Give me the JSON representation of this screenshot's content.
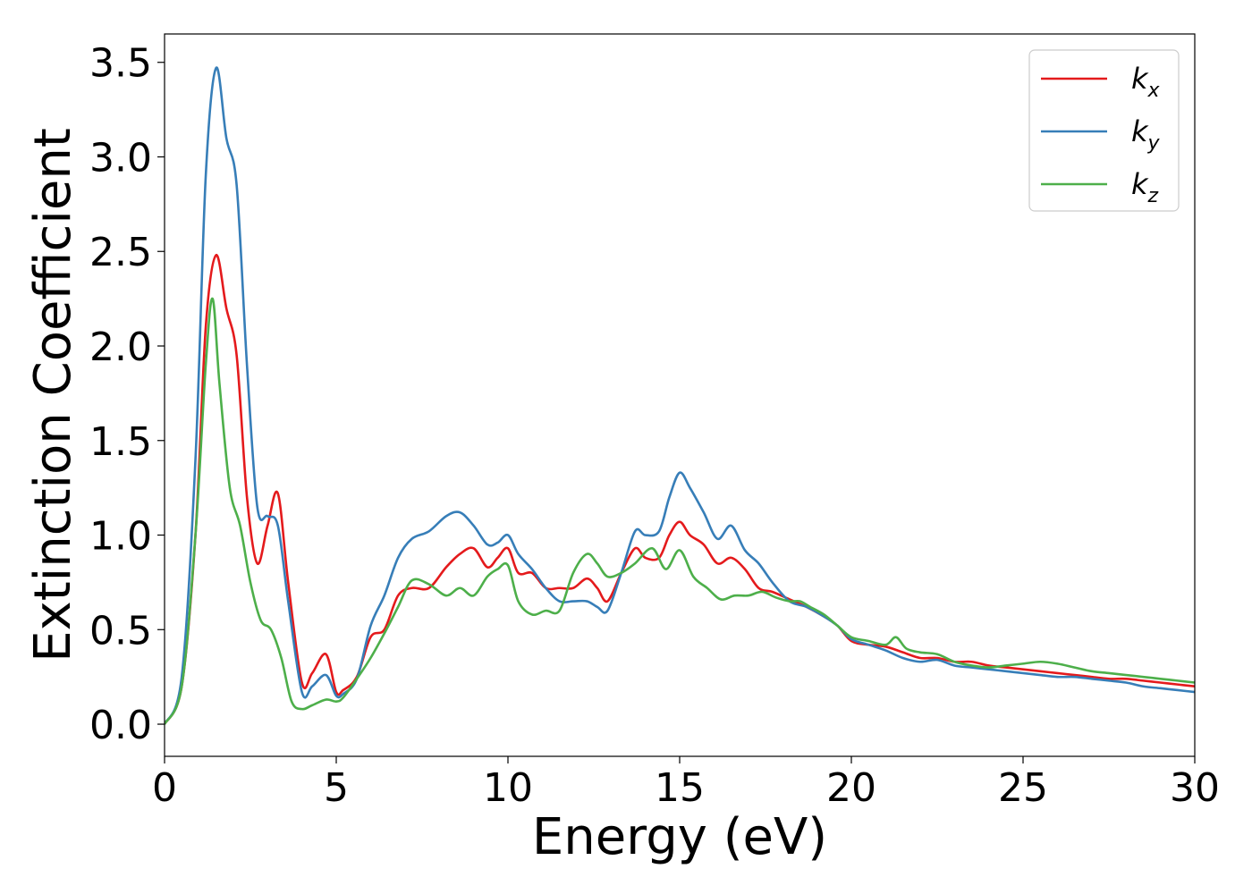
{
  "chart_data": {
    "type": "line",
    "xlabel": "Energy (eV)",
    "ylabel": "Extinction Coefficient",
    "xlim": [
      0,
      30
    ],
    "ylim": [
      -0.17,
      3.65
    ],
    "xticks": [
      "0",
      "5",
      "10",
      "15",
      "20",
      "25",
      "30"
    ],
    "yticks": [
      "0.0",
      "0.5",
      "1.0",
      "1.5",
      "2.0",
      "2.5",
      "3.0",
      "3.5"
    ],
    "grid": false,
    "legend_position": "top-right",
    "series": [
      {
        "name": "x",
        "color": "#e41a1c",
        "x": [
          0,
          0.5,
          0.9,
          1.2,
          1.5,
          1.8,
          2.1,
          2.4,
          2.7,
          3.0,
          3.3,
          3.6,
          4.0,
          4.3,
          4.7,
          5.0,
          5.2,
          5.6,
          6.0,
          6.4,
          6.8,
          7.2,
          7.7,
          8.2,
          8.6,
          9.0,
          9.4,
          9.7,
          10.0,
          10.3,
          10.7,
          11.1,
          11.5,
          11.9,
          12.3,
          12.6,
          12.9,
          13.3,
          13.7,
          14.0,
          14.4,
          14.7,
          15.0,
          15.3,
          15.7,
          16.1,
          16.5,
          16.9,
          17.3,
          17.7,
          18.2,
          18.7,
          19.2,
          19.6,
          20.0,
          20.5,
          21.0,
          21.5,
          22.0,
          22.5,
          23.0,
          23.5,
          24.0,
          24.5,
          25.0,
          25.5,
          26.0,
          26.5,
          27.0,
          27.5,
          28.0,
          28.5,
          29.0,
          29.5,
          30.0
        ],
        "y": [
          0.0,
          0.2,
          1.0,
          2.1,
          2.48,
          2.2,
          1.95,
          1.2,
          0.85,
          1.05,
          1.22,
          0.75,
          0.22,
          0.27,
          0.37,
          0.17,
          0.18,
          0.25,
          0.46,
          0.5,
          0.68,
          0.72,
          0.72,
          0.83,
          0.9,
          0.93,
          0.83,
          0.88,
          0.93,
          0.8,
          0.8,
          0.72,
          0.72,
          0.72,
          0.77,
          0.72,
          0.65,
          0.8,
          0.93,
          0.88,
          0.88,
          1.0,
          1.07,
          1.0,
          0.95,
          0.85,
          0.88,
          0.82,
          0.72,
          0.7,
          0.66,
          0.62,
          0.57,
          0.52,
          0.44,
          0.42,
          0.41,
          0.38,
          0.35,
          0.35,
          0.33,
          0.33,
          0.31,
          0.3,
          0.29,
          0.28,
          0.27,
          0.26,
          0.25,
          0.24,
          0.24,
          0.23,
          0.22,
          0.21,
          0.2
        ]
      },
      {
        "name": "y",
        "color": "#377eb8",
        "x": [
          0,
          0.5,
          0.9,
          1.2,
          1.5,
          1.8,
          2.1,
          2.4,
          2.7,
          3.0,
          3.3,
          3.6,
          4.0,
          4.3,
          4.7,
          5.0,
          5.2,
          5.6,
          6.0,
          6.4,
          6.8,
          7.2,
          7.7,
          8.2,
          8.6,
          9.0,
          9.4,
          9.7,
          10.0,
          10.3,
          10.7,
          11.1,
          11.5,
          11.9,
          12.3,
          12.6,
          12.9,
          13.3,
          13.7,
          14.0,
          14.4,
          14.7,
          15.0,
          15.3,
          15.7,
          16.1,
          16.5,
          16.9,
          17.3,
          17.7,
          18.2,
          18.7,
          19.2,
          19.6,
          20.0,
          20.5,
          21.0,
          21.5,
          22.0,
          22.5,
          23.0,
          23.5,
          24.0,
          24.5,
          25.0,
          25.5,
          26.0,
          26.5,
          27.0,
          27.5,
          28.0,
          28.5,
          29.0,
          29.5,
          30.0
        ],
        "y": [
          0.0,
          0.25,
          1.4,
          2.9,
          3.47,
          3.1,
          2.85,
          1.9,
          1.15,
          1.1,
          1.05,
          0.65,
          0.17,
          0.2,
          0.26,
          0.15,
          0.16,
          0.24,
          0.52,
          0.68,
          0.88,
          0.98,
          1.02,
          1.1,
          1.12,
          1.05,
          0.95,
          0.96,
          1.0,
          0.9,
          0.82,
          0.72,
          0.65,
          0.65,
          0.65,
          0.62,
          0.6,
          0.8,
          1.02,
          1.0,
          1.02,
          1.2,
          1.33,
          1.25,
          1.12,
          0.98,
          1.05,
          0.92,
          0.85,
          0.75,
          0.65,
          0.62,
          0.57,
          0.52,
          0.45,
          0.42,
          0.39,
          0.35,
          0.33,
          0.34,
          0.31,
          0.3,
          0.29,
          0.28,
          0.27,
          0.26,
          0.25,
          0.25,
          0.24,
          0.23,
          0.22,
          0.2,
          0.19,
          0.18,
          0.17
        ]
      },
      {
        "name": "z",
        "color": "#4daf4a",
        "x": [
          0,
          0.5,
          0.9,
          1.2,
          1.4,
          1.6,
          1.9,
          2.2,
          2.5,
          2.8,
          3.1,
          3.4,
          3.7,
          4.0,
          4.3,
          4.7,
          5.0,
          5.2,
          5.6,
          6.0,
          6.4,
          6.8,
          7.2,
          7.7,
          8.2,
          8.6,
          9.0,
          9.4,
          9.7,
          10.0,
          10.3,
          10.7,
          11.1,
          11.5,
          11.9,
          12.3,
          12.6,
          12.9,
          13.3,
          13.7,
          14.2,
          14.6,
          15.0,
          15.4,
          15.8,
          16.2,
          16.6,
          17.0,
          17.4,
          17.8,
          18.2,
          18.5,
          18.8,
          19.2,
          19.6,
          20.0,
          20.5,
          21.0,
          21.3,
          21.6,
          22.0,
          22.5,
          23.0,
          23.5,
          24.0,
          24.5,
          25.0,
          25.5,
          26.0,
          26.5,
          27.0,
          27.5,
          28.0,
          28.5,
          29.0,
          29.5,
          30.0
        ],
        "y": [
          0.0,
          0.2,
          1.0,
          1.9,
          2.25,
          1.8,
          1.25,
          1.05,
          0.75,
          0.55,
          0.5,
          0.35,
          0.12,
          0.08,
          0.1,
          0.13,
          0.12,
          0.14,
          0.24,
          0.35,
          0.48,
          0.62,
          0.76,
          0.74,
          0.68,
          0.72,
          0.68,
          0.78,
          0.82,
          0.84,
          0.65,
          0.58,
          0.6,
          0.6,
          0.8,
          0.9,
          0.85,
          0.78,
          0.8,
          0.85,
          0.93,
          0.82,
          0.92,
          0.78,
          0.72,
          0.66,
          0.68,
          0.68,
          0.7,
          0.67,
          0.65,
          0.65,
          0.62,
          0.58,
          0.52,
          0.46,
          0.44,
          0.42,
          0.46,
          0.4,
          0.38,
          0.37,
          0.33,
          0.31,
          0.3,
          0.31,
          0.32,
          0.33,
          0.32,
          0.3,
          0.28,
          0.27,
          0.26,
          0.25,
          0.24,
          0.23,
          0.22
        ]
      }
    ]
  }
}
